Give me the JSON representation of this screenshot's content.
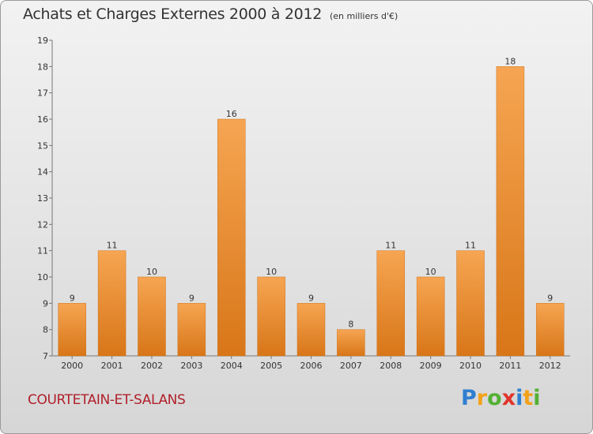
{
  "header": {
    "title": "Achats et Charges Externes 2000 à 2012",
    "subtitle": "(en milliers d'€)"
  },
  "footer": {
    "commune": "COURTETAIN-ET-SALANS",
    "logo": "Proxiti"
  },
  "colors": {
    "bar_top": "#f6a552",
    "bar_bottom": "#d87618",
    "title": "#333333",
    "commune": "#b01f2a"
  },
  "chart_data": {
    "type": "bar",
    "title": "Achats et Charges Externes 2000 à 2012",
    "subtitle": "(en milliers d'€)",
    "xlabel": "",
    "ylabel": "",
    "categories": [
      "2000",
      "2001",
      "2002",
      "2003",
      "2004",
      "2005",
      "2006",
      "2007",
      "2008",
      "2009",
      "2010",
      "2011",
      "2012"
    ],
    "values": [
      9,
      11,
      10,
      9,
      16,
      10,
      9,
      8,
      11,
      10,
      11,
      18,
      9
    ],
    "ylim": [
      7,
      19
    ],
    "yticks": [
      7,
      8,
      9,
      10,
      11,
      12,
      13,
      14,
      15,
      16,
      17,
      18,
      19
    ],
    "grid": false,
    "legend": "none"
  }
}
